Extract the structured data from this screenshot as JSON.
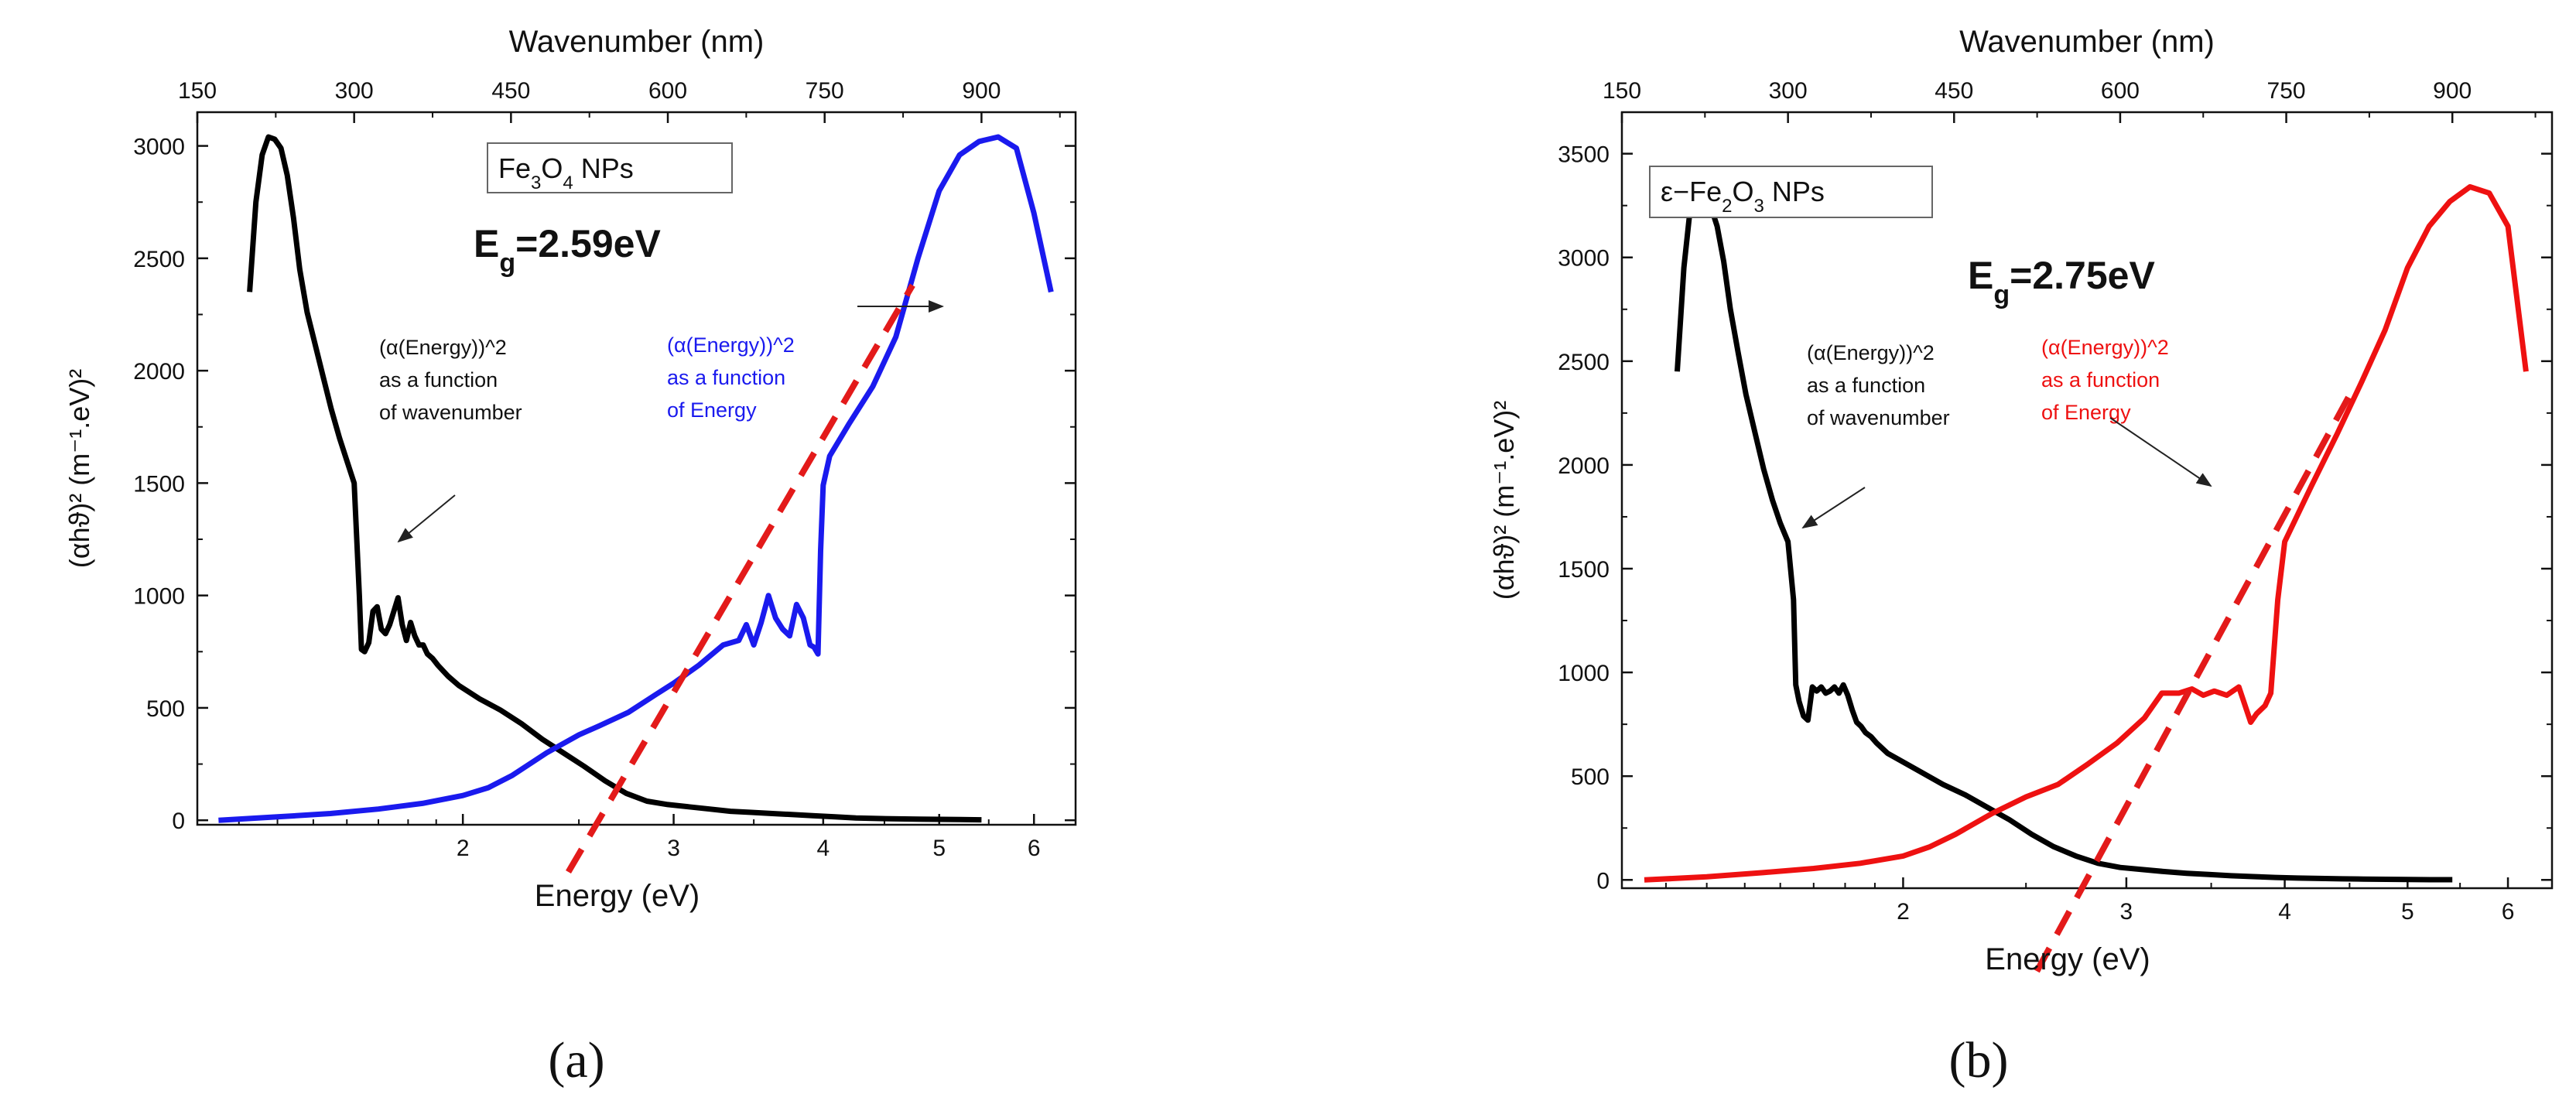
{
  "chart_data": [
    {
      "type": "line",
      "panel_label": "(a)",
      "sample_label": "Fe3O4 NPs",
      "sample_parts": {
        "prefix": "Fe",
        "sub1": "3",
        "mid": "O",
        "sub2": "4",
        "suffix": " NPs"
      },
      "eg_label": {
        "main": "E",
        "sub": "g",
        "value": "=2.59eV"
      },
      "xlabel": "Energy (eV)",
      "x2label": "Wavenumber (nm)",
      "ylabel": "(αhϑ)² (m⁻¹.eV)²",
      "x_scale": "log",
      "xlim": [
        1.2,
        6.5
      ],
      "x_ticks": [
        2,
        3,
        4,
        5,
        6
      ],
      "x2lim": [
        150,
        990
      ],
      "x2_ticks": [
        150,
        300,
        450,
        600,
        750,
        900
      ],
      "ylim": [
        -20,
        3150
      ],
      "y_ticks": [
        0,
        500,
        1000,
        1500,
        2000,
        2500,
        3000
      ],
      "annotations": {
        "black_lines": [
          "(α(Energy))^2",
          "as a function",
          " of wavenumber"
        ],
        "blue_lines": [
          "(α(Energy))^2",
          "as a function",
          "of Energy"
        ]
      },
      "series": [
        {
          "axis": "top",
          "color": "#000000",
          "x": [
            200,
            206,
            212,
            218,
            224,
            230,
            236,
            242,
            248,
            255,
            262,
            270,
            278,
            286,
            293,
            300,
            305,
            307,
            310,
            314,
            318,
            322,
            326,
            330,
            334,
            338,
            342,
            346,
            350,
            354,
            358,
            362,
            366,
            370,
            375,
            380,
            390,
            400,
            420,
            440,
            460,
            480,
            500,
            520,
            540,
            560,
            580,
            600,
            620,
            640,
            660,
            680,
            700,
            720,
            740,
            760,
            780,
            800,
            820,
            840,
            860,
            880,
            900
          ],
          "y": [
            2350,
            2750,
            2960,
            3040,
            3030,
            2990,
            2870,
            2680,
            2450,
            2260,
            2130,
            1980,
            1830,
            1700,
            1600,
            1500,
            1000,
            760,
            750,
            790,
            930,
            950,
            850,
            830,
            870,
            930,
            990,
            870,
            800,
            880,
            820,
            780,
            780,
            740,
            720,
            690,
            640,
            600,
            540,
            490,
            430,
            360,
            300,
            240,
            175,
            120,
            85,
            70,
            60,
            50,
            40,
            35,
            30,
            25,
            20,
            15,
            10,
            8,
            6,
            5,
            4,
            3,
            2
          ]
        },
        {
          "axis": "bottom",
          "color": "#1a1aee",
          "x": [
            1.25,
            1.4,
            1.55,
            1.7,
            1.85,
            2.0,
            2.1,
            2.2,
            2.35,
            2.5,
            2.6,
            2.75,
            2.9,
            3.0,
            3.15,
            3.3,
            3.4,
            3.45,
            3.5,
            3.55,
            3.6,
            3.65,
            3.7,
            3.75,
            3.8,
            3.85,
            3.9,
            3.93,
            3.96,
            3.98,
            4.0,
            4.05,
            4.2,
            4.4,
            4.6,
            4.8,
            5.0,
            5.2,
            5.4,
            5.6,
            5.8,
            6.0,
            6.2
          ],
          "y": [
            0,
            15,
            30,
            50,
            75,
            110,
            145,
            200,
            300,
            380,
            420,
            480,
            560,
            610,
            690,
            780,
            800,
            870,
            780,
            880,
            1000,
            900,
            850,
            820,
            960,
            900,
            780,
            770,
            740,
            1200,
            1490,
            1620,
            1760,
            1930,
            2150,
            2500,
            2800,
            2960,
            3020,
            3040,
            2990,
            2700,
            2350
          ]
        },
        {
          "axis": "bottom",
          "color": "#e31a1a",
          "style": "dashed",
          "x": [
            2.45,
            4.75
          ],
          "y": [
            -230,
            2380
          ]
        }
      ]
    },
    {
      "type": "line",
      "panel_label": "(b)",
      "sample_label": "ε−Fe2O3 NPs",
      "sample_parts": {
        "prefix": "ε−Fe",
        "sub1": "2",
        "mid": "O",
        "sub2": "3",
        "suffix": " NPs"
      },
      "eg_label": {
        "main": "E",
        "sub": "g",
        "value": "=2.75eV"
      },
      "xlabel": "Energy (eV)",
      "x2label": "Wavenumber (nm)",
      "ylabel": "(αhϑ)² (m⁻¹.eV)²",
      "x_scale": "log",
      "xlim": [
        1.2,
        6.5
      ],
      "x_ticks": [
        2,
        3,
        4,
        5,
        6
      ],
      "x2lim": [
        150,
        990
      ],
      "x2_ticks": [
        150,
        300,
        450,
        600,
        750,
        900
      ],
      "ylim": [
        -40,
        3700
      ],
      "y_ticks": [
        0,
        500,
        1000,
        1500,
        2000,
        2500,
        3000,
        3500
      ],
      "annotations": {
        "black_lines": [
          "(α(Energy))^2",
          "as a function",
          " of wavenumber"
        ],
        "red_lines": [
          "(α(Energy))^2",
          "as a function",
          " of Energy"
        ]
      },
      "series": [
        {
          "axis": "top",
          "color": "#000000",
          "x": [
            200,
            206,
            212,
            218,
            224,
            230,
            236,
            242,
            248,
            255,
            262,
            270,
            278,
            286,
            293,
            300,
            305,
            307,
            310,
            314,
            318,
            322,
            326,
            330,
            334,
            338,
            342,
            346,
            350,
            354,
            358,
            362,
            366,
            370,
            375,
            380,
            390,
            400,
            420,
            440,
            460,
            480,
            500,
            520,
            540,
            560,
            580,
            600,
            620,
            640,
            660,
            680,
            700,
            720,
            740,
            760,
            780,
            800,
            820,
            840,
            860,
            880,
            900
          ],
          "y": [
            2450,
            2950,
            3250,
            3360,
            3340,
            3250,
            3150,
            2980,
            2750,
            2540,
            2340,
            2160,
            1980,
            1830,
            1720,
            1630,
            1350,
            940,
            860,
            790,
            770,
            930,
            910,
            930,
            900,
            910,
            930,
            900,
            940,
            890,
            820,
            760,
            740,
            710,
            690,
            660,
            610,
            580,
            520,
            460,
            410,
            350,
            290,
            220,
            160,
            115,
            80,
            60,
            50,
            40,
            32,
            26,
            20,
            16,
            12,
            9,
            7,
            5,
            4,
            3,
            2,
            1,
            1
          ]
        },
        {
          "axis": "bottom",
          "color": "#ee1111",
          "x": [
            1.25,
            1.4,
            1.55,
            1.7,
            1.85,
            2.0,
            2.1,
            2.2,
            2.35,
            2.5,
            2.65,
            2.8,
            2.95,
            3.1,
            3.2,
            3.3,
            3.38,
            3.45,
            3.52,
            3.6,
            3.68,
            3.76,
            3.8,
            3.86,
            3.9,
            3.95,
            4.0,
            4.2,
            4.4,
            4.6,
            4.8,
            5.0,
            5.2,
            5.4,
            5.6,
            5.8,
            6.0,
            6.2
          ],
          "y": [
            0,
            15,
            35,
            55,
            80,
            115,
            160,
            220,
            320,
            400,
            460,
            560,
            660,
            780,
            900,
            900,
            920,
            890,
            910,
            890,
            930,
            760,
            800,
            840,
            900,
            1350,
            1630,
            1900,
            2150,
            2400,
            2650,
            2950,
            3150,
            3270,
            3340,
            3310,
            3150,
            2450
          ]
        },
        {
          "axis": "bottom",
          "color": "#e31a1a",
          "style": "dashed",
          "x": [
            2.55,
            4.55
          ],
          "y": [
            -440,
            2390
          ]
        }
      ]
    }
  ]
}
